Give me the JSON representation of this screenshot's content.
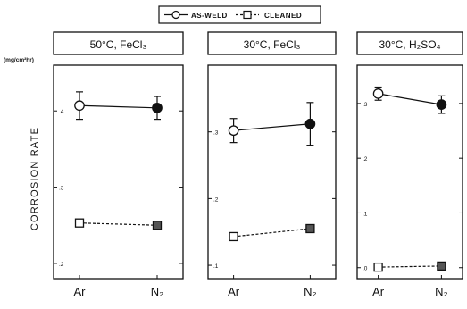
{
  "legend": {
    "entries": [
      {
        "label": "AS-WELD",
        "marker": "circle-open",
        "line": "solid"
      },
      {
        "label": "CLEANED",
        "marker": "square-open",
        "line": "dashed"
      }
    ],
    "placement": "top-center"
  },
  "y_axis_title": "CORROSION RATE",
  "unit_label": "(mg/cm²hr)",
  "colors": {
    "ink": "#111111",
    "background": "#ffffff"
  },
  "chart_data": [
    {
      "type": "line",
      "title": "50°C, FeCl₃",
      "categories": [
        "Ar",
        "N₂"
      ],
      "ylim": [
        0.18,
        0.46
      ],
      "yticks": [
        0.2,
        0.3,
        0.4
      ],
      "ytick_labels": [
        ".2",
        ".3",
        ".4"
      ],
      "grid": false,
      "series": [
        {
          "name": "AS-WELD",
          "values": [
            0.407,
            0.404
          ],
          "err": [
            0.018,
            0.015
          ]
        },
        {
          "name": "CLEANED",
          "values": [
            0.253,
            0.25
          ]
        }
      ]
    },
    {
      "type": "line",
      "title": "30°C, FeCl₃",
      "categories": [
        "Ar",
        "N₂"
      ],
      "ylim": [
        0.08,
        0.4
      ],
      "yticks": [
        0.1,
        0.2,
        0.3
      ],
      "ytick_labels": [
        ".1",
        ".2",
        ".3"
      ],
      "grid": false,
      "series": [
        {
          "name": "AS-WELD",
          "values": [
            0.302,
            0.312
          ],
          "err": [
            0.018,
            0.032
          ]
        },
        {
          "name": "CLEANED",
          "values": [
            0.143,
            0.155
          ]
        }
      ]
    },
    {
      "type": "line",
      "title": "30°C, H₂SO₄",
      "categories": [
        "Ar",
        "N₂"
      ],
      "ylim": [
        -0.02,
        0.37
      ],
      "yticks": [
        0.0,
        0.1,
        0.2,
        0.3
      ],
      "ytick_labels": [
        ".0",
        ".1",
        ".2",
        ".3"
      ],
      "grid": false,
      "series": [
        {
          "name": "AS-WELD",
          "values": [
            0.318,
            0.298
          ],
          "err": [
            0.012,
            0.016
          ]
        },
        {
          "name": "CLEANED",
          "values": [
            0.001,
            0.003
          ]
        }
      ]
    }
  ]
}
